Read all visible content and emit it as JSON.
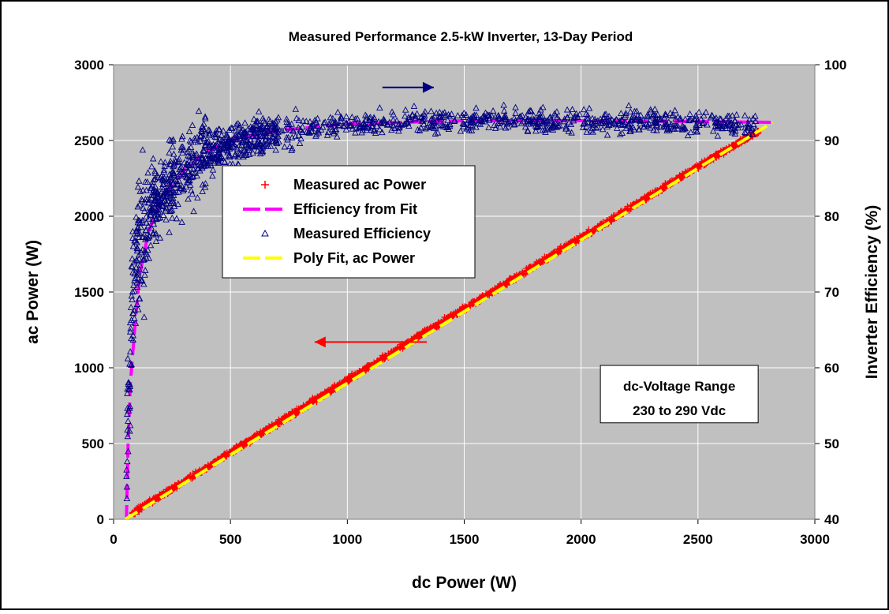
{
  "chart_data": {
    "type": "scatter",
    "title": "Measured Performance 2.5-kW Inverter, 13-Day Period",
    "xlabel": "dc Power (W)",
    "ylabel": "ac Power (W)",
    "y2label": "Inverter Efficiency (%)",
    "xlim": [
      0,
      3000
    ],
    "ylim": [
      0,
      3000
    ],
    "y2lim": [
      40,
      100
    ],
    "xticks": [
      "0",
      "500",
      "1000",
      "1500",
      "2000",
      "2500",
      "3000"
    ],
    "yticks": [
      "0",
      "500",
      "1000",
      "1500",
      "2000",
      "2500",
      "3000"
    ],
    "y2ticks": [
      "40",
      "50",
      "60",
      "70",
      "80",
      "90",
      "100"
    ],
    "grid": true,
    "legend_position": "upper-center-left",
    "series": [
      {
        "name": "Measured ac Power",
        "axis": "left",
        "marker": "plus",
        "color": "#ff0000",
        "x_range": [
          80,
          2760
        ],
        "y_at_x": [
          [
            80,
            40
          ],
          [
            500,
            440
          ],
          [
            1000,
            920
          ],
          [
            1500,
            1390
          ],
          [
            2000,
            1860
          ],
          [
            2500,
            2330
          ],
          [
            2760,
            2560
          ]
        ]
      },
      {
        "name": "Efficiency from Fit",
        "axis": "right",
        "style": "dashed-line",
        "color": "#ff00ff",
        "points": [
          [
            55,
            40
          ],
          [
            62,
            50
          ],
          [
            72,
            58
          ],
          [
            90,
            65
          ],
          [
            110,
            72
          ],
          [
            150,
            78
          ],
          [
            200,
            82
          ],
          [
            300,
            86
          ],
          [
            400,
            88.5
          ],
          [
            500,
            90
          ],
          [
            700,
            91.3
          ],
          [
            1000,
            92.2
          ],
          [
            1500,
            92.6
          ],
          [
            2000,
            92.6
          ],
          [
            2500,
            92.5
          ],
          [
            2820,
            92.4
          ]
        ]
      },
      {
        "name": "Measured Efficiency",
        "axis": "right",
        "marker": "triangle-open",
        "color": "#000080",
        "x_range": [
          55,
          2760
        ],
        "trend": [
          [
            55,
            40
          ],
          [
            60,
            52
          ],
          [
            70,
            60
          ],
          [
            80,
            70
          ],
          [
            100,
            75
          ],
          [
            150,
            80
          ],
          [
            200,
            83
          ],
          [
            300,
            86.5
          ],
          [
            400,
            88.5
          ],
          [
            500,
            89.5
          ],
          [
            700,
            91.2
          ],
          [
            1000,
            92.2
          ],
          [
            1500,
            92.7
          ],
          [
            2000,
            92.5
          ],
          [
            2500,
            92.4
          ],
          [
            2760,
            92.3
          ]
        ]
      },
      {
        "name": "Poly Fit, ac Power",
        "axis": "left",
        "style": "dashed-line",
        "color": "#ffff00",
        "points": [
          [
            50,
            0
          ],
          [
            2820,
            2620
          ]
        ]
      }
    ],
    "annotations": [
      {
        "text": "dc-Voltage Range",
        "x": 2420,
        "y": 880
      },
      {
        "text": "230 to 290 Vdc",
        "x": 2420,
        "y": 720
      }
    ],
    "arrows": [
      {
        "direction": "right",
        "color": "#000080",
        "meaning": "efficiency uses right axis",
        "from": [
          1150,
          2850
        ],
        "to": [
          1370,
          2850
        ]
      },
      {
        "direction": "left",
        "color": "#ff0000",
        "meaning": "ac power uses left axis",
        "from": [
          1340,
          1170
        ],
        "to": [
          860,
          1170
        ]
      }
    ]
  }
}
